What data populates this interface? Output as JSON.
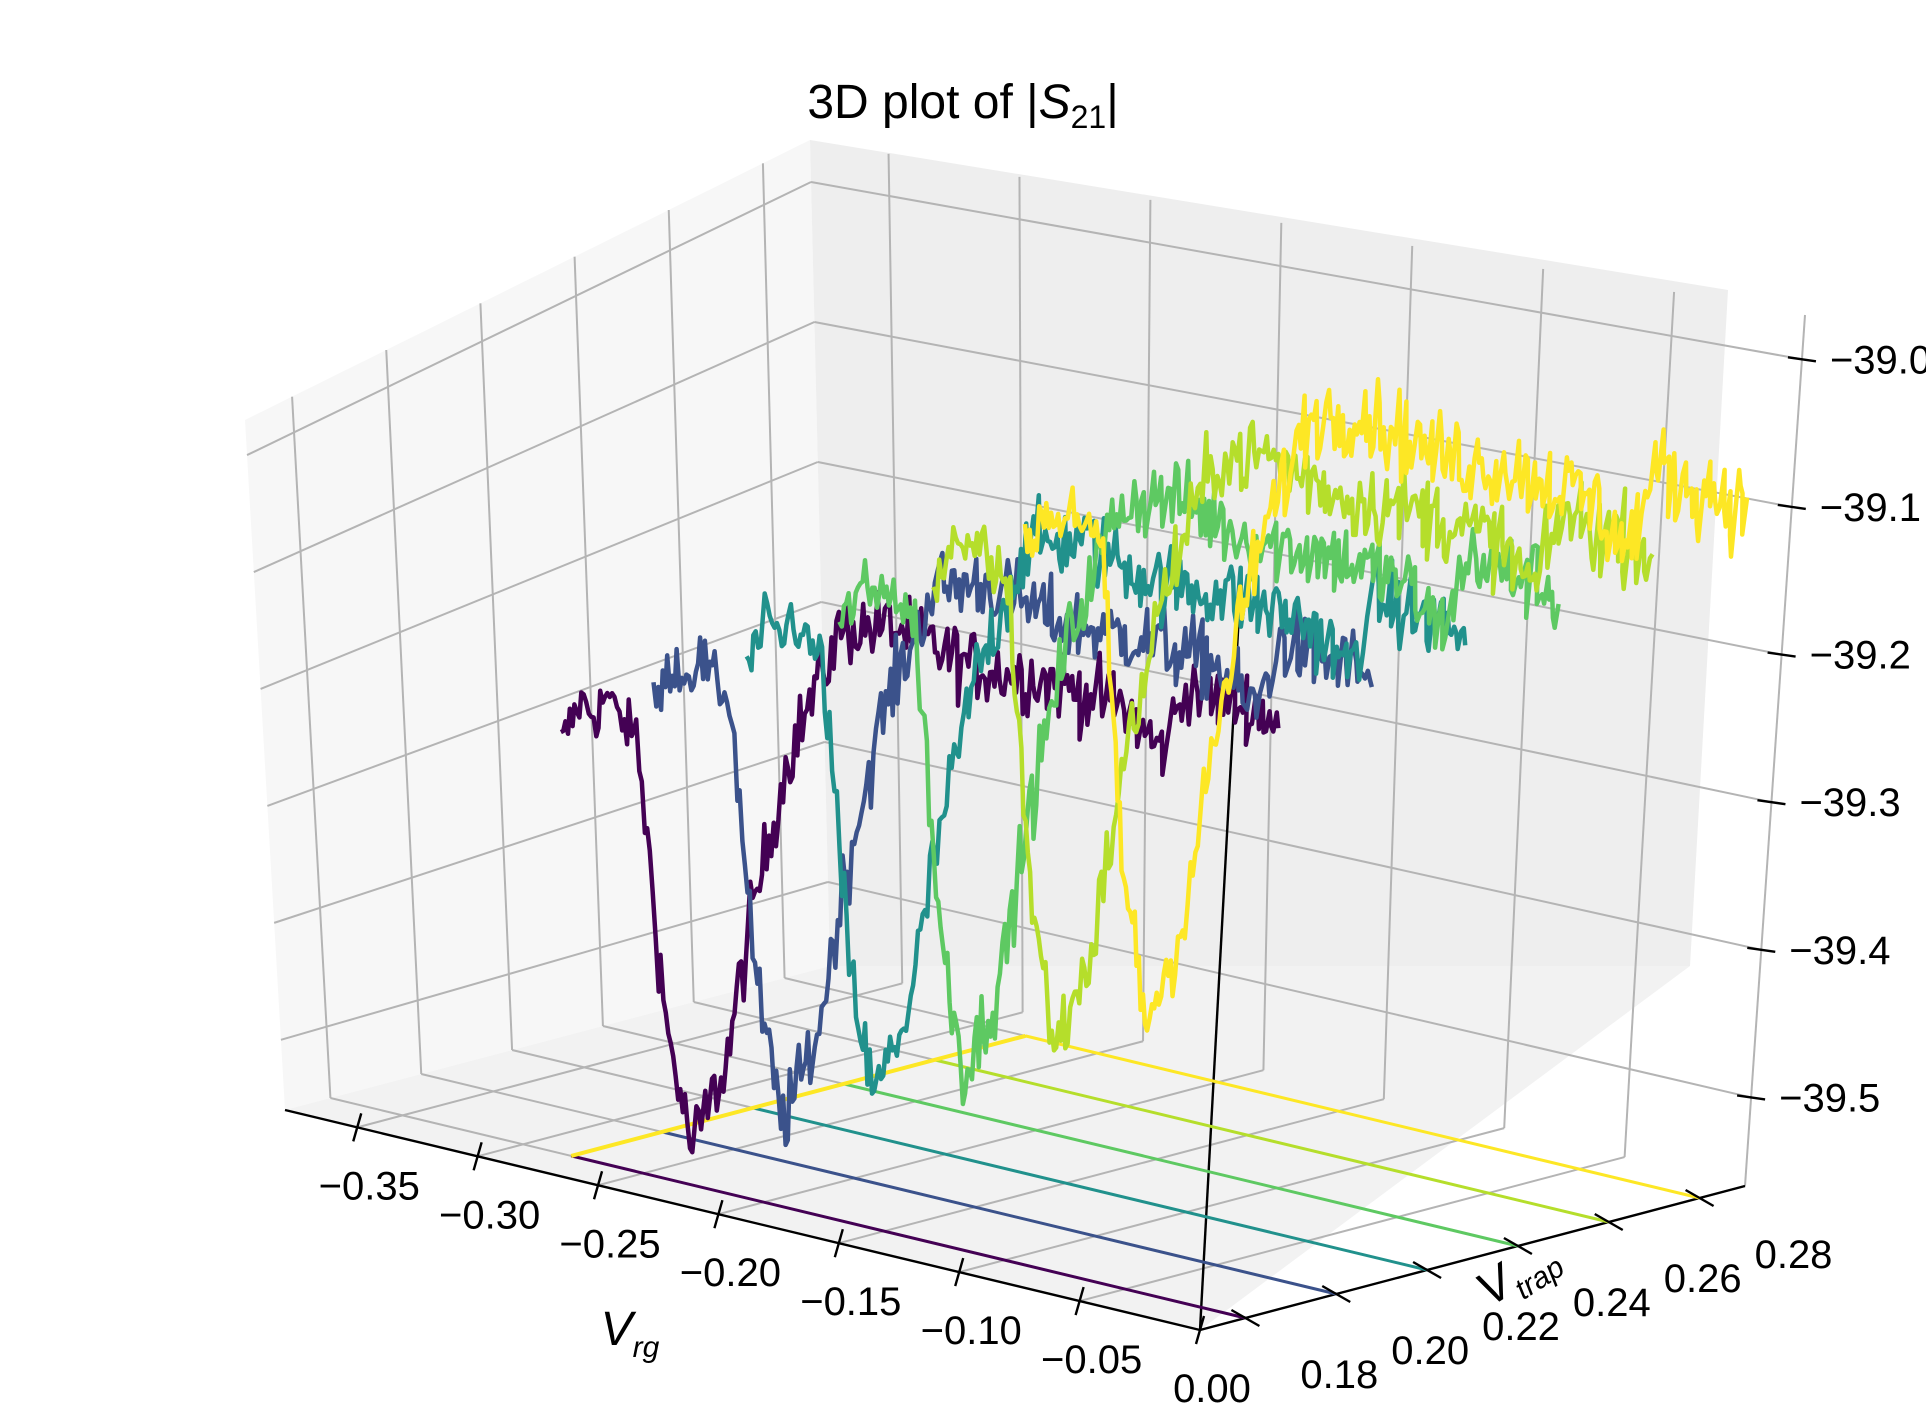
{
  "chart_data": {
    "type": "line",
    "title": "3D plot of |S21|",
    "xlabel": "V_rg",
    "ylabel": "V_trap",
    "zlabel": "",
    "xlim": [
      -0.38,
      0.0
    ],
    "ylim": [
      0.17,
      0.29
    ],
    "zlim": [
      -39.56,
      -38.97
    ],
    "x_ticks": [
      "−0.35",
      "−0.30",
      "−0.25",
      "−0.20",
      "−0.15",
      "−0.10",
      "−0.05",
      "0.00"
    ],
    "y_ticks": [
      "0.18",
      "0.20",
      "0.22",
      "0.24",
      "0.26",
      "0.28"
    ],
    "z_ticks": [
      "−39.0",
      "−39.1",
      "−39.2",
      "−39.3",
      "−39.4",
      "−39.5"
    ],
    "colormap": "viridis",
    "colors": [
      "#440154",
      "#3b528b",
      "#21918c",
      "#5ec962",
      "#b5de2b",
      "#fde725"
    ],
    "x_range": [
      -0.28,
      0.0
    ],
    "trap_values": [
      0.18,
      0.2,
      0.22,
      0.24,
      0.26,
      0.28
    ],
    "profile": {
      "v_rg": [
        -0.28,
        -0.272,
        -0.266,
        -0.262,
        -0.256,
        -0.25,
        -0.24,
        -0.23,
        -0.222,
        -0.215,
        -0.205,
        -0.19,
        -0.17,
        -0.15,
        -0.12,
        -0.09,
        -0.06,
        -0.045,
        -0.035,
        -0.025,
        -0.01,
        0.0
      ],
      "s21": [
        -39.22,
        -39.18,
        -39.19,
        -39.17,
        -39.19,
        -39.2,
        -39.43,
        -39.53,
        -39.49,
        -39.45,
        -39.33,
        -39.19,
        -39.08,
        -39.07,
        -39.09,
        -39.09,
        -39.1,
        -39.13,
        -39.07,
        -39.08,
        -39.08,
        -39.09
      ]
    },
    "projection_base_z": -39.56,
    "grid": true
  }
}
